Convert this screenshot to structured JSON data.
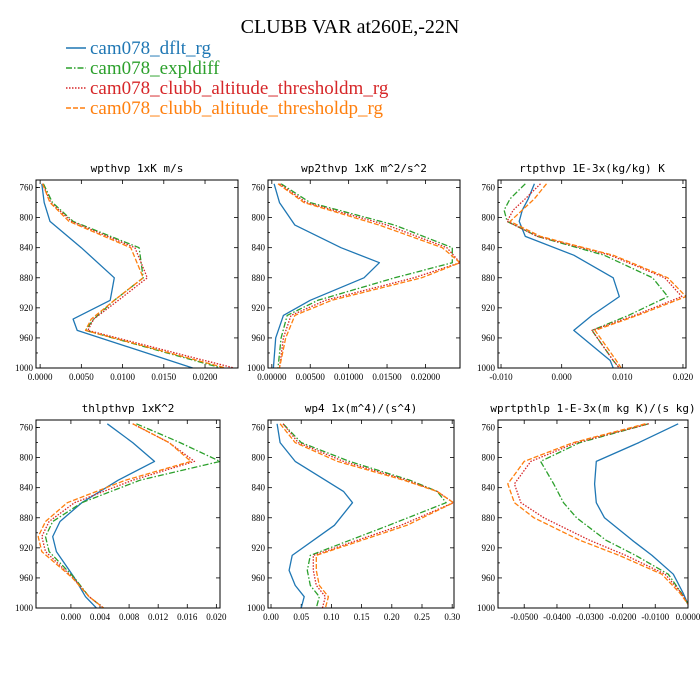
{
  "title": "CLUBB VAR at260E,-22N",
  "legend": [
    {
      "name": "cam078_dflt_rg",
      "color": "#1f77b4",
      "dash": "solid"
    },
    {
      "name": "cam078_expldiff",
      "color": "#2ca02c",
      "dash": "dashdot"
    },
    {
      "name": "cam078_clubb_altitude_thresholdm_rg",
      "color": "#d62728",
      "dash": "dotted"
    },
    {
      "name": "cam078_clubb_altitude_thresholdp_rg",
      "color": "#ff7f0e",
      "dash": "dashed"
    }
  ],
  "chart_data": [
    {
      "type": "line",
      "title": "wpthvp  1xK m/s",
      "xlim": [
        -0.0005,
        0.024
      ],
      "ylim": [
        1000,
        750
      ],
      "xticks": [
        "0.0000",
        "0.0050",
        "0.0100",
        "0.0150",
        "0.0200"
      ],
      "xtick_values": [
        0,
        0.005,
        0.01,
        0.015,
        0.02
      ],
      "yticks": [
        760,
        800,
        840,
        880,
        920,
        960,
        1000
      ],
      "y": [
        755,
        780,
        805,
        840,
        880,
        910,
        935,
        950,
        1000
      ],
      "series": [
        {
          "name": "cam078_dflt_rg",
          "x": [
            0.0002,
            0.0005,
            0.0012,
            0.005,
            0.009,
            0.0085,
            0.004,
            0.0045,
            0.0185
          ]
        },
        {
          "name": "cam078_expldiff",
          "x": [
            0.0004,
            0.0015,
            0.004,
            0.012,
            0.0125,
            0.009,
            0.0065,
            0.0055,
            0.022
          ]
        },
        {
          "name": "cam078_clubb_altitude_thresholdm_rg",
          "x": [
            0.0003,
            0.0013,
            0.0038,
            0.0115,
            0.013,
            0.0095,
            0.0065,
            0.0058,
            0.0235
          ]
        },
        {
          "name": "cam078_clubb_altitude_thresholdp_rg",
          "x": [
            0.0003,
            0.0012,
            0.0035,
            0.011,
            0.0125,
            0.009,
            0.0062,
            0.0055,
            0.0225
          ]
        }
      ]
    },
    {
      "type": "line",
      "title": "wp2thvp  1xK m^2/s^2",
      "xlim": [
        -0.0005,
        0.0245
      ],
      "ylim": [
        1000,
        750
      ],
      "xticks": [
        "0.00000",
        "0.00500",
        "0.01000",
        "0.01500",
        "0.02000"
      ],
      "xtick_values": [
        0,
        0.005,
        0.01,
        0.015,
        0.02
      ],
      "yticks": [
        760,
        800,
        840,
        880,
        920,
        960,
        1000
      ],
      "y": [
        755,
        780,
        810,
        840,
        860,
        880,
        910,
        930,
        960,
        1000
      ],
      "series": [
        {
          "name": "cam078_dflt_rg",
          "x": [
            0.0003,
            0.001,
            0.003,
            0.009,
            0.014,
            0.012,
            0.005,
            0.0015,
            0.0005,
            0.0002
          ]
        },
        {
          "name": "cam078_expldiff",
          "x": [
            0.0012,
            0.005,
            0.016,
            0.0235,
            0.0235,
            0.016,
            0.006,
            0.002,
            0.0012,
            0.0008
          ]
        },
        {
          "name": "cam078_clubb_altitude_thresholdm_rg",
          "x": [
            0.001,
            0.0045,
            0.015,
            0.0228,
            0.0245,
            0.0185,
            0.007,
            0.0025,
            0.0015,
            0.001
          ]
        },
        {
          "name": "cam078_clubb_altitude_thresholdp_rg",
          "x": [
            0.0008,
            0.0042,
            0.014,
            0.0222,
            0.0245,
            0.0195,
            0.0078,
            0.003,
            0.0018,
            0.001
          ]
        }
      ]
    },
    {
      "type": "line",
      "title": "rtpthvp  1E-3x(kg/kg) K",
      "xlim": [
        -0.0105,
        0.0205
      ],
      "ylim": [
        1000,
        750
      ],
      "xticks": [
        "-0.010",
        "0.000",
        "0.010",
        "0.020"
      ],
      "xtick_values": [
        -0.01,
        0,
        0.01,
        0.02
      ],
      "yticks": [
        760,
        800,
        840,
        880,
        920,
        960,
        1000
      ],
      "y": [
        755,
        775,
        790,
        805,
        825,
        850,
        880,
        905,
        930,
        950,
        990,
        1000
      ],
      "series": [
        {
          "name": "cam078_dflt_rg",
          "x": [
            -0.0045,
            -0.0055,
            -0.0065,
            -0.007,
            -0.006,
            0.002,
            0.0085,
            0.0095,
            0.005,
            0.002,
            0.008,
            0.0085
          ]
        },
        {
          "name": "cam078_expldiff",
          "x": [
            -0.006,
            -0.0085,
            -0.0095,
            -0.009,
            -0.004,
            0.007,
            0.015,
            0.0175,
            0.011,
            0.005,
            0.0085,
            0.0095
          ]
        },
        {
          "name": "cam078_clubb_altitude_thresholdm_rg",
          "x": [
            -0.0035,
            -0.006,
            -0.008,
            -0.009,
            -0.004,
            0.008,
            0.017,
            0.0198,
            0.012,
            0.005,
            0.0085,
            0.0095
          ]
        },
        {
          "name": "cam078_clubb_altitude_thresholdp_rg",
          "x": [
            -0.0025,
            -0.0045,
            -0.0065,
            -0.0085,
            -0.0035,
            0.0085,
            0.0175,
            0.0205,
            0.0125,
            0.0055,
            0.009,
            0.0098
          ]
        }
      ]
    },
    {
      "type": "line",
      "title": "thlpthvp  1xK^2",
      "xlim": [
        -0.0048,
        0.0205
      ],
      "ylim": [
        1000,
        750
      ],
      "xticks": [
        "0.000",
        "0.004",
        "0.008",
        "0.012",
        "0.016",
        "0.020"
      ],
      "xtick_values": [
        0,
        0.004,
        0.008,
        0.012,
        0.016,
        0.02
      ],
      "yticks": [
        760,
        800,
        840,
        880,
        920,
        960,
        1000
      ],
      "y": [
        755,
        780,
        805,
        830,
        860,
        885,
        905,
        925,
        960,
        985,
        1000
      ],
      "series": [
        {
          "name": "cam078_dflt_rg",
          "x": [
            0.005,
            0.0085,
            0.0115,
            0.0065,
            0.0015,
            -0.0015,
            -0.0025,
            -0.002,
            0.0005,
            0.002,
            0.0035
          ]
        },
        {
          "name": "cam078_expldiff",
          "x": [
            0.009,
            0.015,
            0.0205,
            0.0095,
            0.0015,
            -0.0025,
            -0.0035,
            -0.003,
            0.0005,
            0.0025,
            0.0045
          ]
        },
        {
          "name": "cam078_clubb_altitude_thresholdm_rg",
          "x": [
            0.0085,
            0.0135,
            0.017,
            0.0085,
            0.0005,
            -0.003,
            -0.004,
            -0.0035,
            0.0003,
            0.0025,
            0.0045
          ]
        },
        {
          "name": "cam078_clubb_altitude_thresholdp_rg",
          "x": [
            0.0085,
            0.0135,
            0.0165,
            0.0075,
            -0.0005,
            -0.0035,
            -0.0045,
            -0.004,
            0.0002,
            0.0025,
            0.0045
          ]
        }
      ]
    },
    {
      "type": "line",
      "title": "wp4  1x(m^4)/(s^4)",
      "xlim": [
        -0.005,
        0.303
      ],
      "ylim": [
        1000,
        750
      ],
      "xticks": [
        "0.00",
        "0.05",
        "0.10",
        "0.15",
        "0.20",
        "0.25",
        "0.30"
      ],
      "xtick_values": [
        0,
        0.05,
        0.1,
        0.15,
        0.2,
        0.25,
        0.3
      ],
      "yticks": [
        760,
        800,
        840,
        880,
        920,
        960,
        1000
      ],
      "y": [
        755,
        780,
        805,
        830,
        845,
        860,
        890,
        930,
        950,
        970,
        985,
        1000
      ],
      "series": [
        {
          "name": "cam078_dflt_rg",
          "x": [
            0.01,
            0.015,
            0.04,
            0.09,
            0.12,
            0.135,
            0.105,
            0.035,
            0.03,
            0.04,
            0.055,
            0.05
          ]
        },
        {
          "name": "cam078_expldiff",
          "x": [
            0.02,
            0.05,
            0.13,
            0.23,
            0.275,
            0.29,
            0.195,
            0.065,
            0.06,
            0.065,
            0.08,
            0.075
          ]
        },
        {
          "name": "cam078_clubb_altitude_thresholdm_rg",
          "x": [
            0.02,
            0.045,
            0.12,
            0.225,
            0.275,
            0.302,
            0.215,
            0.07,
            0.07,
            0.075,
            0.09,
            0.085
          ]
        },
        {
          "name": "cam078_clubb_altitude_thresholdp_rg",
          "x": [
            0.015,
            0.04,
            0.11,
            0.22,
            0.275,
            0.302,
            0.225,
            0.075,
            0.075,
            0.08,
            0.095,
            0.09
          ]
        }
      ]
    },
    {
      "type": "line",
      "title": "wprtpthlp  1-E-3x(m kg K)/(s kg)",
      "xlim": [
        -0.058,
        0.0
      ],
      "ylim": [
        1000,
        750
      ],
      "xticks": [
        "-0.0500",
        "-0.0400",
        "-0.0300",
        "-0.0200",
        "-0.0100",
        "0.0000"
      ],
      "xtick_values": [
        -0.05,
        -0.04,
        -0.03,
        -0.02,
        -0.01,
        0.0
      ],
      "yticks": [
        760,
        800,
        840,
        880,
        920,
        960,
        1000
      ],
      "y": [
        755,
        780,
        805,
        835,
        860,
        880,
        910,
        930,
        955,
        980,
        995
      ],
      "series": [
        {
          "name": "cam078_dflt_rg",
          "x": [
            -0.003,
            -0.015,
            -0.028,
            -0.0285,
            -0.028,
            -0.0255,
            -0.017,
            -0.011,
            -0.0045,
            -0.0015,
            0.0
          ]
        },
        {
          "name": "cam078_expldiff",
          "x": [
            -0.012,
            -0.033,
            -0.045,
            -0.041,
            -0.038,
            -0.034,
            -0.025,
            -0.016,
            -0.006,
            -0.002,
            0.0
          ]
        },
        {
          "name": "cam078_clubb_altitude_thresholdm_rg",
          "x": [
            -0.012,
            -0.034,
            -0.048,
            -0.053,
            -0.051,
            -0.044,
            -0.03,
            -0.019,
            -0.007,
            -0.002,
            0.0
          ]
        },
        {
          "name": "cam078_clubb_altitude_thresholdp_rg",
          "x": [
            -0.013,
            -0.035,
            -0.05,
            -0.055,
            -0.053,
            -0.047,
            -0.033,
            -0.021,
            -0.008,
            -0.0025,
            0.0
          ]
        }
      ]
    }
  ]
}
